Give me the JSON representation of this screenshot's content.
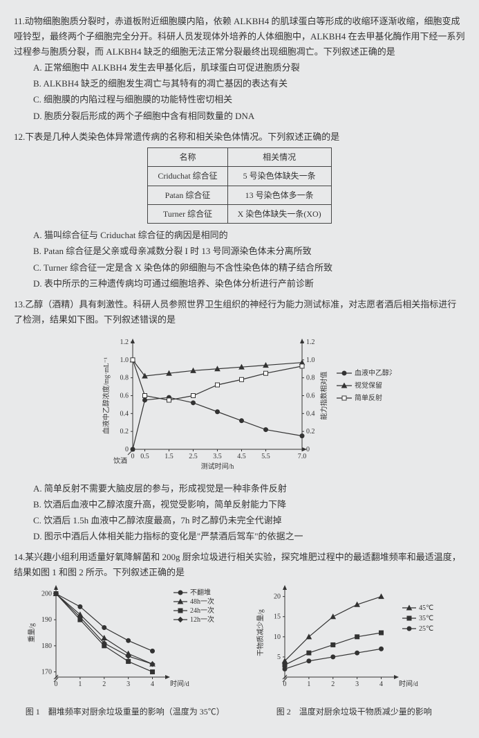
{
  "q11": {
    "num": "11.",
    "text": "动物细胞胞质分裂时，赤道板附近细胞膜内陷，依赖 ALKBH4 的肌球蛋白等形成的收缩环逐渐收缩，细胞变成哑铃型，最终两个子细胞完全分开。科研人员发现体外培养的人体细胞中，ALKBH4 在去甲基化酶作用下经一系列过程参与胞质分裂，而 ALKBH4 缺乏的细胞无法正常分裂最终出现细胞凋亡。下列叙述正确的是",
    "opts": {
      "A": "A. 正常细胞中 ALKBH4 发生去甲基化后，肌球蛋白可促进胞质分裂",
      "B": "B. ALKBH4 缺乏的细胞发生凋亡与其特有的凋亡基因的表达有关",
      "C": "C. 细胞膜的内陷过程与细胞膜的功能特性密切相关",
      "D": "D. 胞质分裂后形成的两个子细胞中含有相同数量的 DNA"
    }
  },
  "q12": {
    "num": "12.",
    "text": "下表是几种人类染色体异常遗传病的名称和相关染色体情况。下列叙述正确的是",
    "table": {
      "h1": "名称",
      "h2": "相关情况",
      "r1c1": "Criduchat 综合征",
      "r1c2": "5 号染色体缺失一条",
      "r2c1": "Patan 综合征",
      "r2c2": "13 号染色体多一条",
      "r3c1": "Turner 综合征",
      "r3c2": "X 染色体缺失一条(XO)"
    },
    "opts": {
      "A": "A. 猫叫综合征与 Criduchat 综合征的病因是相同的",
      "B": "B. Patan 综合征是父亲或母亲减数分裂 I 时 13 号同源染色体未分离所致",
      "C": "C. Turner 综合征一定是含 X 染色体的卵细胞与不含性染色体的精子结合所致",
      "D": "D. 表中所示的三种遗传病均可通过细胞培养、染色体分析进行产前诊断"
    }
  },
  "q13": {
    "num": "13.",
    "text": "乙醇（酒精）具有刺激性。科研人员参照世界卫生组织的神经行为能力测试标准，对志愿者酒后相关指标进行了检测，结果如下图。下列叙述错误的是",
    "chart": {
      "xlabel": "测试时间/h",
      "ylabel_l": "血液中乙醇浓度/mg·mL⁻¹",
      "ylabel_r": "能力指数相对值",
      "xticks": [
        "0",
        "0.5",
        "1.5",
        "2.5",
        "3.5",
        "4.5",
        "5.5",
        "7.0"
      ],
      "yticks": [
        "0",
        "0.2",
        "0.4",
        "0.6",
        "0.8",
        "1.0",
        "1.2"
      ],
      "drink": "饮酒",
      "legend": {
        "s1": "血液中乙醇浓度",
        "s2": "视觉保留",
        "s3": "简单反射"
      },
      "ethanol": {
        "x": [
          0,
          0.5,
          1.5,
          2.5,
          3.5,
          4.5,
          5.5,
          7.0
        ],
        "y": [
          0,
          0.55,
          0.58,
          0.52,
          0.42,
          0.32,
          0.22,
          0.15
        ],
        "marker": "circle"
      },
      "vision": {
        "x": [
          0,
          0.5,
          1.5,
          2.5,
          3.5,
          4.5,
          5.5,
          7.0
        ],
        "y": [
          1.0,
          0.82,
          0.85,
          0.88,
          0.9,
          0.92,
          0.94,
          0.97
        ],
        "marker": "triangle"
      },
      "reflex": {
        "x": [
          0,
          0.5,
          1.5,
          2.5,
          3.5,
          4.5,
          5.5,
          7.0
        ],
        "y": [
          1.0,
          0.6,
          0.55,
          0.6,
          0.72,
          0.78,
          0.85,
          0.93
        ],
        "marker": "square"
      }
    },
    "opts": {
      "A": "A. 简单反射不需要大脑皮层的参与，形成视觉是一种非条件反射",
      "B": "B. 饮酒后血液中乙醇浓度升高，视觉受影响，简单反射能力下降",
      "C": "C. 饮酒后 1.5h 血液中乙醇浓度最高，7h 时乙醇仍未完全代谢掉",
      "D": "D. 图示中酒后人体相关能力指标的变化是\"严禁酒后驾车\"的依据之一"
    }
  },
  "q14": {
    "num": "14.",
    "text": "某兴趣小组利用适量好氧降解菌和 200g 厨余垃圾进行相关实验，探究堆肥过程中的最适翻堆频率和最适温度，结果如图 1 和图 2 所示。下列叙述正确的是",
    "chart1": {
      "xlabel": "时间/d",
      "ylabel": "重量/g",
      "cap": "图 1　翻堆频率对厨余垃圾重量的影响（温度为 35℃）",
      "xticks": [
        "0",
        "1",
        "2",
        "3",
        "4"
      ],
      "yticks": [
        "170",
        "180",
        "190",
        "200"
      ],
      "legend": {
        "s1": "不翻堆",
        "s2": "48h一次",
        "s3": "24h一次",
        "s4": "12h一次"
      },
      "s1": {
        "x": [
          0,
          1,
          2,
          3,
          4
        ],
        "y": [
          200,
          195,
          187,
          182,
          178
        ]
      },
      "s2": {
        "x": [
          0,
          1,
          2,
          3,
          4
        ],
        "y": [
          200,
          192,
          183,
          177,
          173
        ]
      },
      "s3": {
        "x": [
          0,
          1,
          2,
          3,
          4
        ],
        "y": [
          200,
          190,
          180,
          174,
          170
        ]
      },
      "s4": {
        "x": [
          0,
          1,
          2,
          3,
          4
        ],
        "y": [
          200,
          191,
          181,
          176,
          173
        ]
      }
    },
    "chart2": {
      "xlabel": "时间/d",
      "ylabel": "干物质减少量/g",
      "cap": "图 2　温度对厨余垃圾干物质减少量的影响",
      "xticks": [
        "0",
        "1",
        "2",
        "3",
        "4"
      ],
      "yticks": [
        "5",
        "10",
        "15",
        "20"
      ],
      "legend": {
        "s1": "45℃",
        "s2": "35℃",
        "s3": "25℃"
      },
      "s1": {
        "x": [
          0,
          1,
          2,
          3,
          4
        ],
        "y": [
          4,
          10,
          15,
          18,
          20
        ]
      },
      "s2": {
        "x": [
          0,
          1,
          2,
          3,
          4
        ],
        "y": [
          3,
          6,
          8,
          10,
          11
        ]
      },
      "s3": {
        "x": [
          0,
          1,
          2,
          3,
          4
        ],
        "y": [
          2,
          4,
          5,
          6,
          7
        ]
      }
    }
  }
}
